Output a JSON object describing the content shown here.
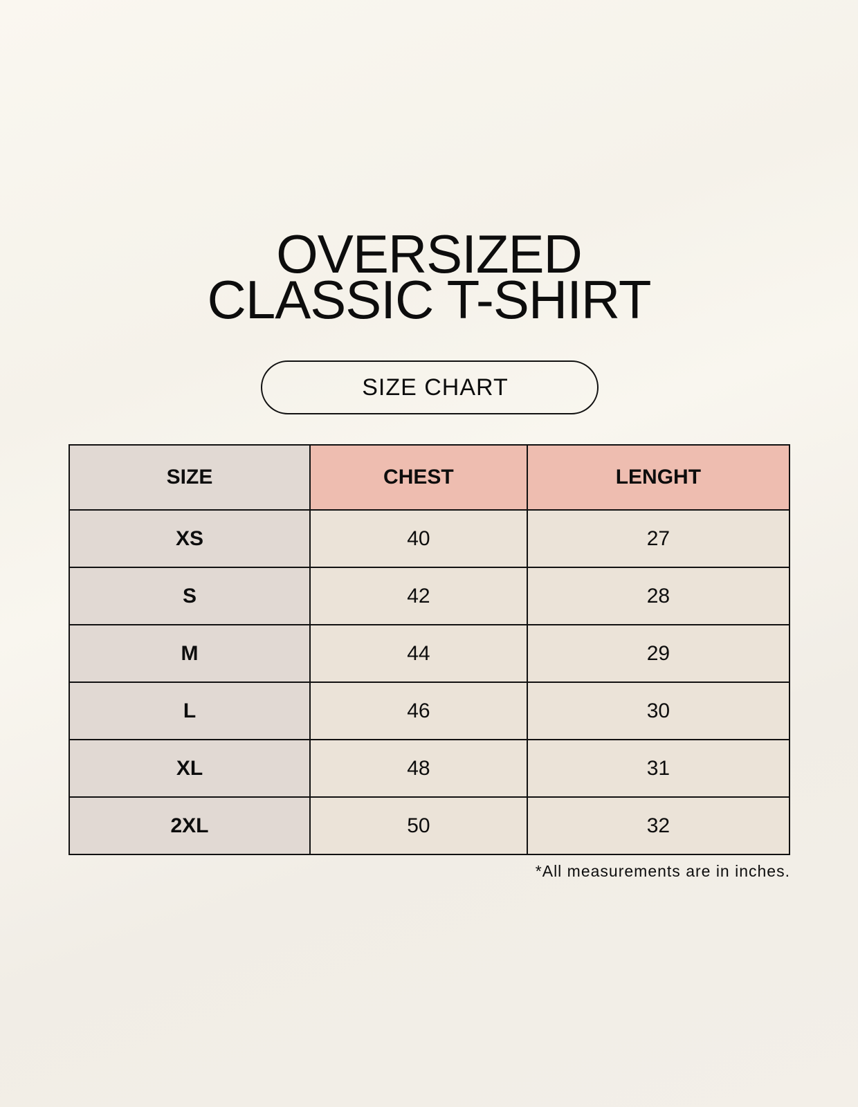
{
  "title": {
    "line1": "OVERSIZED",
    "line2": "CLASSIC T-SHIRT"
  },
  "badge": "SIZE CHART",
  "table": {
    "headers": [
      "SIZE",
      "CHEST",
      "LENGHT"
    ],
    "rows": [
      [
        "XS",
        "40",
        "27"
      ],
      [
        "S",
        "42",
        "28"
      ],
      [
        "M",
        "44",
        "29"
      ],
      [
        "L",
        "46",
        "30"
      ],
      [
        "XL",
        "48",
        "31"
      ],
      [
        "2XL",
        "50",
        "32"
      ]
    ]
  },
  "footnote": "*All measurements are in inches.",
  "colors": {
    "size_column": "#e1d9d3",
    "header_accent": "#eebdb0",
    "value_cells": "#ebe3d8"
  }
}
